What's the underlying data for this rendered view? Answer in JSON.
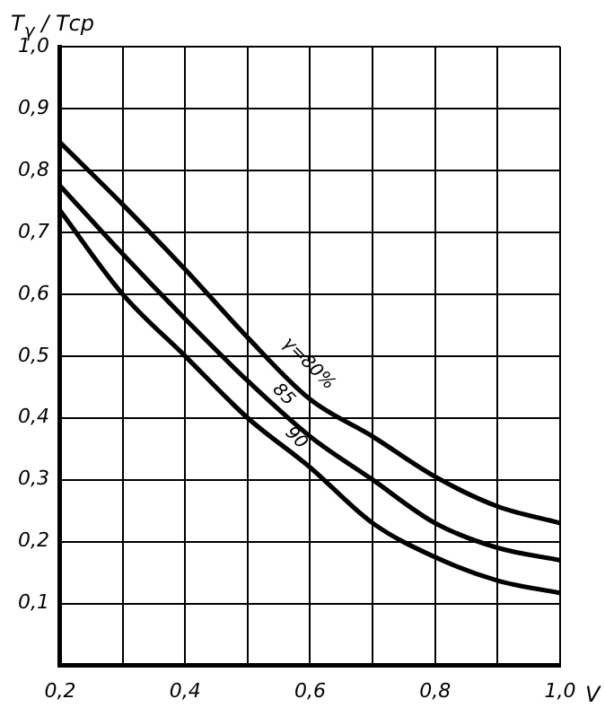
{
  "chart_data": {
    "type": "line",
    "ylabel": "T$_{γ}$ / Tср",
    "xlabel": "V",
    "x": [
      0.2,
      0.3,
      0.4,
      0.5,
      0.6,
      0.7,
      0.8,
      0.9,
      1.0
    ],
    "series": [
      {
        "color": "#000000",
        "values": [
          0.845,
          0.745,
          0.64,
          0.53,
          0.43,
          0.37,
          0.305,
          0.257,
          0.23
        ]
      },
      {
        "color": "#000000",
        "values": [
          0.775,
          0.665,
          0.56,
          0.46,
          0.37,
          0.3,
          0.23,
          0.19,
          0.17
        ]
      },
      {
        "color": "#000000",
        "values": [
          0.735,
          0.6,
          0.5,
          0.4,
          0.32,
          0.23,
          0.175,
          0.137,
          0.117
        ]
      }
    ],
    "annotations": [
      {
        "text": "γ=80%",
        "x": 0.58,
        "y": 0.47
      },
      {
        "text": "85",
        "x": 0.54,
        "y": 0.42
      },
      {
        "text": "90",
        "x": 0.56,
        "y": 0.35
      }
    ],
    "xlim": [
      0.2,
      1.0
    ],
    "xticks": [
      {
        "value": 0.2,
        "label": "0,2"
      },
      {
        "value": 0.3,
        "label": null
      },
      {
        "value": 0.4,
        "label": "0,4"
      },
      {
        "value": 0.5,
        "label": null
      },
      {
        "value": 0.6,
        "label": "0,6"
      },
      {
        "value": 0.7,
        "label": null
      },
      {
        "value": 0.8,
        "label": "0,8"
      },
      {
        "value": 0.9,
        "label": null
      },
      {
        "value": 1.0,
        "label": "1,0"
      }
    ],
    "ylim": [
      0,
      1.0
    ],
    "yticks": [
      {
        "value": 0.1,
        "label": "0,1"
      },
      {
        "value": 0.2,
        "label": "0,2"
      },
      {
        "value": 0.3,
        "label": "0,3"
      },
      {
        "value": 0.4,
        "label": "0,4"
      },
      {
        "value": 0.5,
        "label": "0,5"
      },
      {
        "value": 0.6,
        "label": "0,6"
      },
      {
        "value": 0.7,
        "label": "0,7"
      },
      {
        "value": 0.8,
        "label": "0,8"
      },
      {
        "value": 0.9,
        "label": "0,9"
      },
      {
        "value": 1.0,
        "label": "1,0"
      }
    ],
    "grid": true,
    "legend": false,
    "marker": "none",
    "line_style": "solid"
  }
}
